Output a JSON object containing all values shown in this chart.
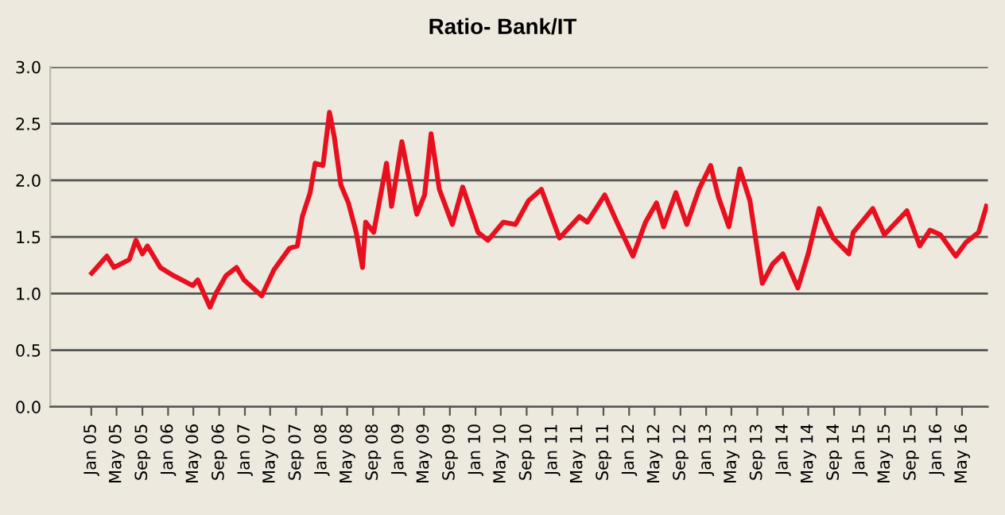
{
  "chart_data": {
    "type": "line",
    "title": "Ratio- Bank/IT",
    "x": [
      "2005-01-03",
      "2005-03-16",
      "2005-04-19",
      "2005-07-01",
      "2005-08-01",
      "2005-09-01",
      "2005-09-25",
      "2005-11-25",
      "2006-01-25",
      "2006-04-28",
      "2006-05-22",
      "2006-07-19",
      "2006-08-16",
      "2006-10-04",
      "2006-11-22",
      "2006-12-28",
      "2007-03-22",
      "2007-05-19",
      "2007-08-01",
      "2007-09-07",
      "2007-10-01",
      "2007-11-07",
      "2007-12-01",
      "2008-01-07",
      "2008-02-07",
      "2008-03-01",
      "2008-04-01",
      "2008-05-07",
      "2008-06-13",
      "2008-07-13",
      "2008-07-28",
      "2008-09-04",
      "2008-11-04",
      "2008-11-28",
      "2009-01-16",
      "2009-02-10",
      "2009-03-28",
      "2009-05-04",
      "2009-06-04",
      "2009-07-13",
      "2009-09-13",
      "2009-11-01",
      "2010-01-13",
      "2010-03-01",
      "2010-05-13",
      "2010-07-10",
      "2010-09-10",
      "2010-11-10",
      "2011-02-04",
      "2011-05-10",
      "2011-06-16",
      "2011-09-07",
      "2011-11-04",
      "2012-01-19",
      "2012-03-19",
      "2012-05-10",
      "2012-06-13",
      "2012-08-10",
      "2012-10-01",
      "2012-11-28",
      "2013-01-22",
      "2013-03-01",
      "2013-04-19",
      "2013-06-10",
      "2013-07-28",
      "2013-09-25",
      "2013-11-13",
      "2014-01-01",
      "2014-03-13",
      "2014-05-01",
      "2014-06-22",
      "2014-08-28",
      "2014-11-10",
      "2014-12-01",
      "2015-03-04",
      "2015-04-28",
      "2015-08-13",
      "2015-10-13",
      "2015-12-01",
      "2016-01-19",
      "2016-04-01",
      "2016-05-19",
      "2016-07-19",
      "2016-08-25"
    ],
    "series": [
      {
        "color": "#e8101f",
        "values": [
          1.18,
          1.33,
          1.23,
          1.3,
          1.47,
          1.35,
          1.42,
          1.23,
          1.16,
          1.07,
          1.12,
          0.88,
          1.0,
          1.16,
          1.23,
          1.12,
          0.98,
          1.21,
          1.4,
          1.42,
          1.68,
          1.89,
          2.15,
          2.13,
          2.6,
          2.38,
          1.96,
          1.8,
          1.54,
          1.23,
          1.63,
          1.54,
          2.15,
          1.77,
          2.34,
          2.1,
          1.7,
          1.87,
          2.41,
          1.92,
          1.61,
          1.94,
          1.54,
          1.47,
          1.63,
          1.61,
          1.82,
          1.92,
          1.49,
          1.68,
          1.63,
          1.87,
          1.63,
          1.33,
          1.63,
          1.8,
          1.59,
          1.89,
          1.61,
          1.92,
          2.13,
          1.85,
          1.59,
          2.1,
          1.82,
          1.09,
          1.26,
          1.35,
          1.05,
          1.35,
          1.75,
          1.49,
          1.35,
          1.54,
          1.75,
          1.52,
          1.73,
          1.42,
          1.56,
          1.52,
          1.33,
          1.45,
          1.54,
          1.77
        ]
      }
    ],
    "xlim": [
      "2004-06-20",
      "2016-09-01"
    ],
    "xticks": [
      {
        "value": "2005-01-01",
        "label": "Jan 05"
      },
      {
        "value": "2005-05-01",
        "label": "May 05"
      },
      {
        "value": "2005-09-01",
        "label": "Sep 05"
      },
      {
        "value": "2006-01-01",
        "label": "Jan 06"
      },
      {
        "value": "2006-05-01",
        "label": "May 06"
      },
      {
        "value": "2006-09-01",
        "label": "Sep 06"
      },
      {
        "value": "2007-01-01",
        "label": "Jan 07"
      },
      {
        "value": "2007-05-01",
        "label": "May 07"
      },
      {
        "value": "2007-09-01",
        "label": "Sep 07"
      },
      {
        "value": "2008-01-01",
        "label": "Jan 08"
      },
      {
        "value": "2008-05-01",
        "label": "May 08"
      },
      {
        "value": "2008-09-01",
        "label": "Sep 08"
      },
      {
        "value": "2009-01-01",
        "label": "Jan 09"
      },
      {
        "value": "2009-05-01",
        "label": "May 09"
      },
      {
        "value": "2009-09-01",
        "label": "Sep 09"
      },
      {
        "value": "2010-01-01",
        "label": "Jan 10"
      },
      {
        "value": "2010-05-01",
        "label": "May 10"
      },
      {
        "value": "2010-09-01",
        "label": "Sep 10"
      },
      {
        "value": "2011-01-01",
        "label": "Jan 11"
      },
      {
        "value": "2011-05-01",
        "label": "May 11"
      },
      {
        "value": "2011-09-01",
        "label": "Sep 11"
      },
      {
        "value": "2012-01-01",
        "label": "Jan 12"
      },
      {
        "value": "2012-05-01",
        "label": "May 12"
      },
      {
        "value": "2012-09-01",
        "label": "Sep 12"
      },
      {
        "value": "2013-01-01",
        "label": "Jan 13"
      },
      {
        "value": "2013-05-01",
        "label": "May 13"
      },
      {
        "value": "2013-09-01",
        "label": "Sep 13"
      },
      {
        "value": "2014-01-01",
        "label": "Jan 14"
      },
      {
        "value": "2014-05-01",
        "label": "May 14"
      },
      {
        "value": "2014-09-01",
        "label": "Sep 14"
      },
      {
        "value": "2015-01-01",
        "label": "Jan 15"
      },
      {
        "value": "2015-05-01",
        "label": "May 15"
      },
      {
        "value": "2015-09-01",
        "label": "Sep 15"
      },
      {
        "value": "2016-01-01",
        "label": "Jan 16"
      },
      {
        "value": "2016-05-01",
        "label": "May 16"
      }
    ],
    "ylim": [
      0,
      3.0
    ],
    "yticks": [
      {
        "value": 0,
        "label": "0.0"
      },
      {
        "value": 0.5,
        "label": "0.5"
      },
      {
        "value": 1.0,
        "label": "1.0"
      },
      {
        "value": 1.5,
        "label": "1.5"
      },
      {
        "value": 2.0,
        "label": "2.0"
      },
      {
        "value": 2.5,
        "label": "2.5"
      },
      {
        "value": 3.0,
        "label": "3.0"
      }
    ],
    "grid": "y",
    "legend": false,
    "marker": "none",
    "line_style": "solid"
  }
}
